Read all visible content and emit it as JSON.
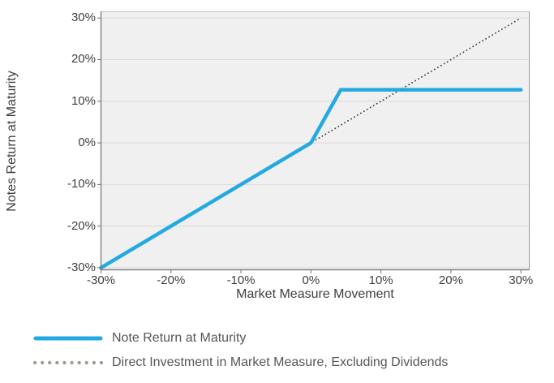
{
  "chart_data": {
    "type": "line",
    "title": "",
    "xlabel": "Market Measure Movement",
    "ylabel": "Notes Return at Maturity",
    "x_axis": {
      "title": "Market Measure Movement",
      "range": [
        -30.06,
        31.25
      ],
      "ticks": [
        {
          "value": -30,
          "label": "-30%"
        },
        {
          "value": -20,
          "label": "-20%"
        },
        {
          "value": -10,
          "label": "-10%"
        },
        {
          "value": 0,
          "label": "0%"
        },
        {
          "value": 10,
          "label": "10%"
        },
        {
          "value": 20,
          "label": "20%"
        },
        {
          "value": 30,
          "label": "30%"
        }
      ]
    },
    "y_axis": {
      "title": "Notes Return at Maturity",
      "range": [
        -30.6,
        31.6
      ],
      "ticks": [
        {
          "value": 30,
          "label": "30%"
        },
        {
          "value": 20,
          "label": "20%"
        },
        {
          "value": 10,
          "label": "10%"
        },
        {
          "value": 0,
          "label": "0%"
        },
        {
          "value": -10,
          "label": "-10%"
        },
        {
          "value": -20,
          "label": "-20%"
        },
        {
          "value": -30,
          "label": "-30%"
        }
      ]
    },
    "grid": "horizontal",
    "series": [
      {
        "id": "direct-investment-line",
        "name": "Direct Investment in Market Measure, Excluding Dividends",
        "style": "dotted",
        "color": "#3b3b3b",
        "stroke_width": 1.7,
        "points": [
          [
            -30,
            -30
          ],
          [
            30,
            30
          ]
        ]
      },
      {
        "id": "note-return-line",
        "name": "Note Return at Maturity",
        "style": "solid",
        "color": "#24a9e1",
        "stroke_width": 4.5,
        "points": [
          [
            -30,
            -30
          ],
          [
            0,
            0
          ],
          [
            4.25,
            12.75
          ],
          [
            30,
            12.75
          ]
        ]
      }
    ],
    "legend": {
      "position": "below-left",
      "items": [
        {
          "label": "Note Return at Maturity",
          "swatch": "solid-line",
          "color": "#24a9e1"
        },
        {
          "label": "Direct Investment in Market Measure, Excluding Dividends",
          "swatch": "dotted-line",
          "color": "#a49a8c"
        }
      ]
    },
    "colors": {
      "plot_bg": "#f0f0f0",
      "gridline": "#d9d9d9",
      "axis_line": "#6f6f6f",
      "frame_top": "#c2c2c2",
      "frame_right": "#9c9c9c",
      "tick_text": "#3f3f3f",
      "legend_text": "#565656"
    }
  }
}
